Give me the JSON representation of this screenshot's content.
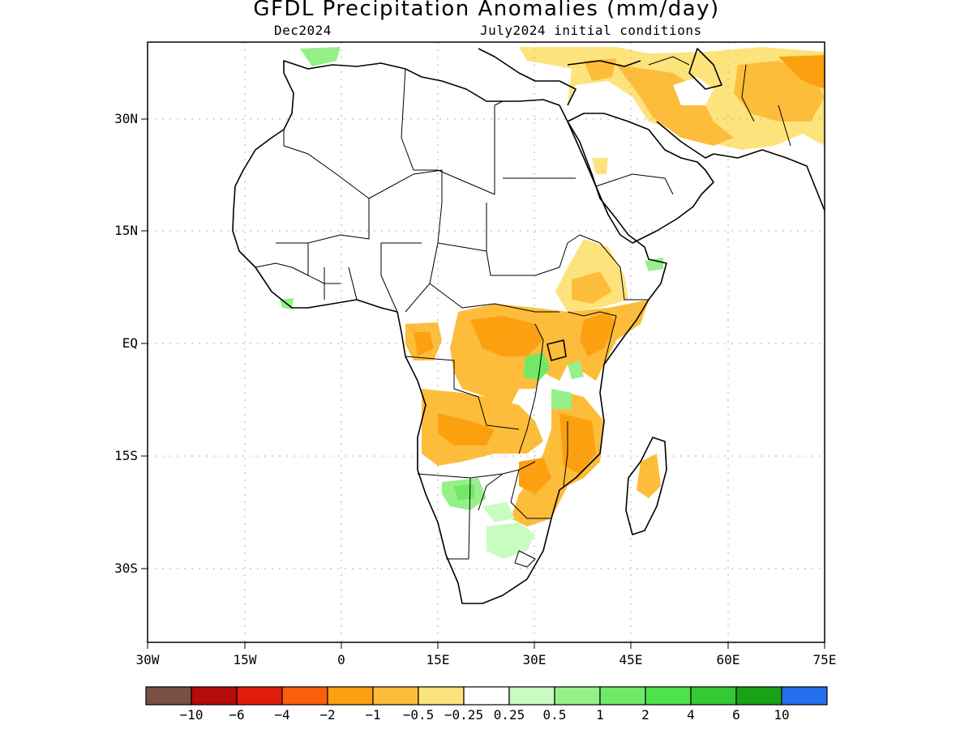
{
  "title": "GFDL Precipitation Anomalies (mm/day)",
  "subtitle_left": "Dec2024",
  "subtitle_right": "July2024 initial conditions",
  "map": {
    "region": "Africa and Middle East",
    "lon_range": [
      -30,
      75
    ],
    "lat_range": [
      -40,
      40
    ],
    "gridlines": "dotted",
    "lon_ticks": [
      {
        "lon": -30,
        "label": "30W"
      },
      {
        "lon": -15,
        "label": "15W"
      },
      {
        "lon": 0,
        "label": "0"
      },
      {
        "lon": 15,
        "label": "15E"
      },
      {
        "lon": 30,
        "label": "30E"
      },
      {
        "lon": 45,
        "label": "45E"
      },
      {
        "lon": 60,
        "label": "60E"
      },
      {
        "lon": 75,
        "label": "75E"
      }
    ],
    "lat_ticks": [
      {
        "lat": 30,
        "label": "30N"
      },
      {
        "lat": 15,
        "label": "15N"
      },
      {
        "lat": 0,
        "label": "EQ"
      },
      {
        "lat": -15,
        "label": "15S"
      },
      {
        "lat": -30,
        "label": "30S"
      }
    ]
  },
  "colorbar": {
    "colors": [
      "#7a5045",
      "#b50b0b",
      "#e01d0c",
      "#f8600c",
      "#fca00f",
      "#fdbd3a",
      "#fde37c",
      "#ffffff",
      "#c8fcc0",
      "#95f08a",
      "#70ea66",
      "#4de24a",
      "#34c834",
      "#16a215",
      "#2470ec"
    ],
    "labels": [
      "−10",
      "−6",
      "−4",
      "−2",
      "−1",
      "−0.5",
      "−0.25",
      "0.25",
      "0.5",
      "1",
      "2",
      "4",
      "6",
      "10"
    ]
  }
}
